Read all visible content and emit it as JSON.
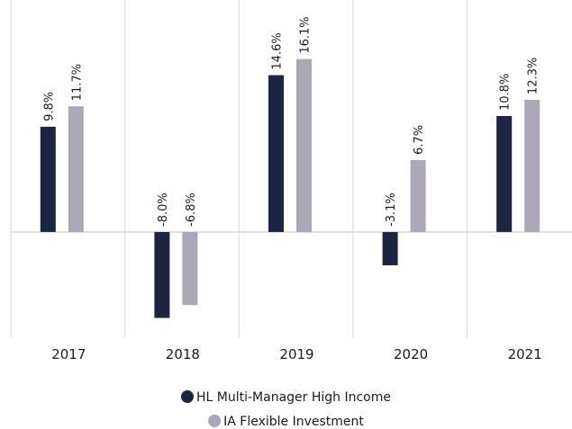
{
  "chart_data": {
    "type": "bar",
    "categories": [
      "2017",
      "2018",
      "2019",
      "2020",
      "2021"
    ],
    "series": [
      {
        "name": "HL Multi-Manager High Income",
        "color": "#1c2541",
        "values": [
          9.8,
          -8.0,
          14.6,
          -3.1,
          10.8
        ],
        "value_labels": [
          "9.8%",
          "-8.0%",
          "14.6%",
          "-3.1%",
          "10.8%"
        ]
      },
      {
        "name": "IA Flexible Investment",
        "color": "#aba7b7",
        "values": [
          11.7,
          -6.8,
          16.1,
          6.7,
          12.3
        ],
        "value_labels": [
          "11.7%",
          "-6.8%",
          "16.1%",
          "6.7%",
          "12.3%"
        ]
      }
    ],
    "ylim": [
      -9.8,
      21.6
    ],
    "legend": "bottom"
  }
}
